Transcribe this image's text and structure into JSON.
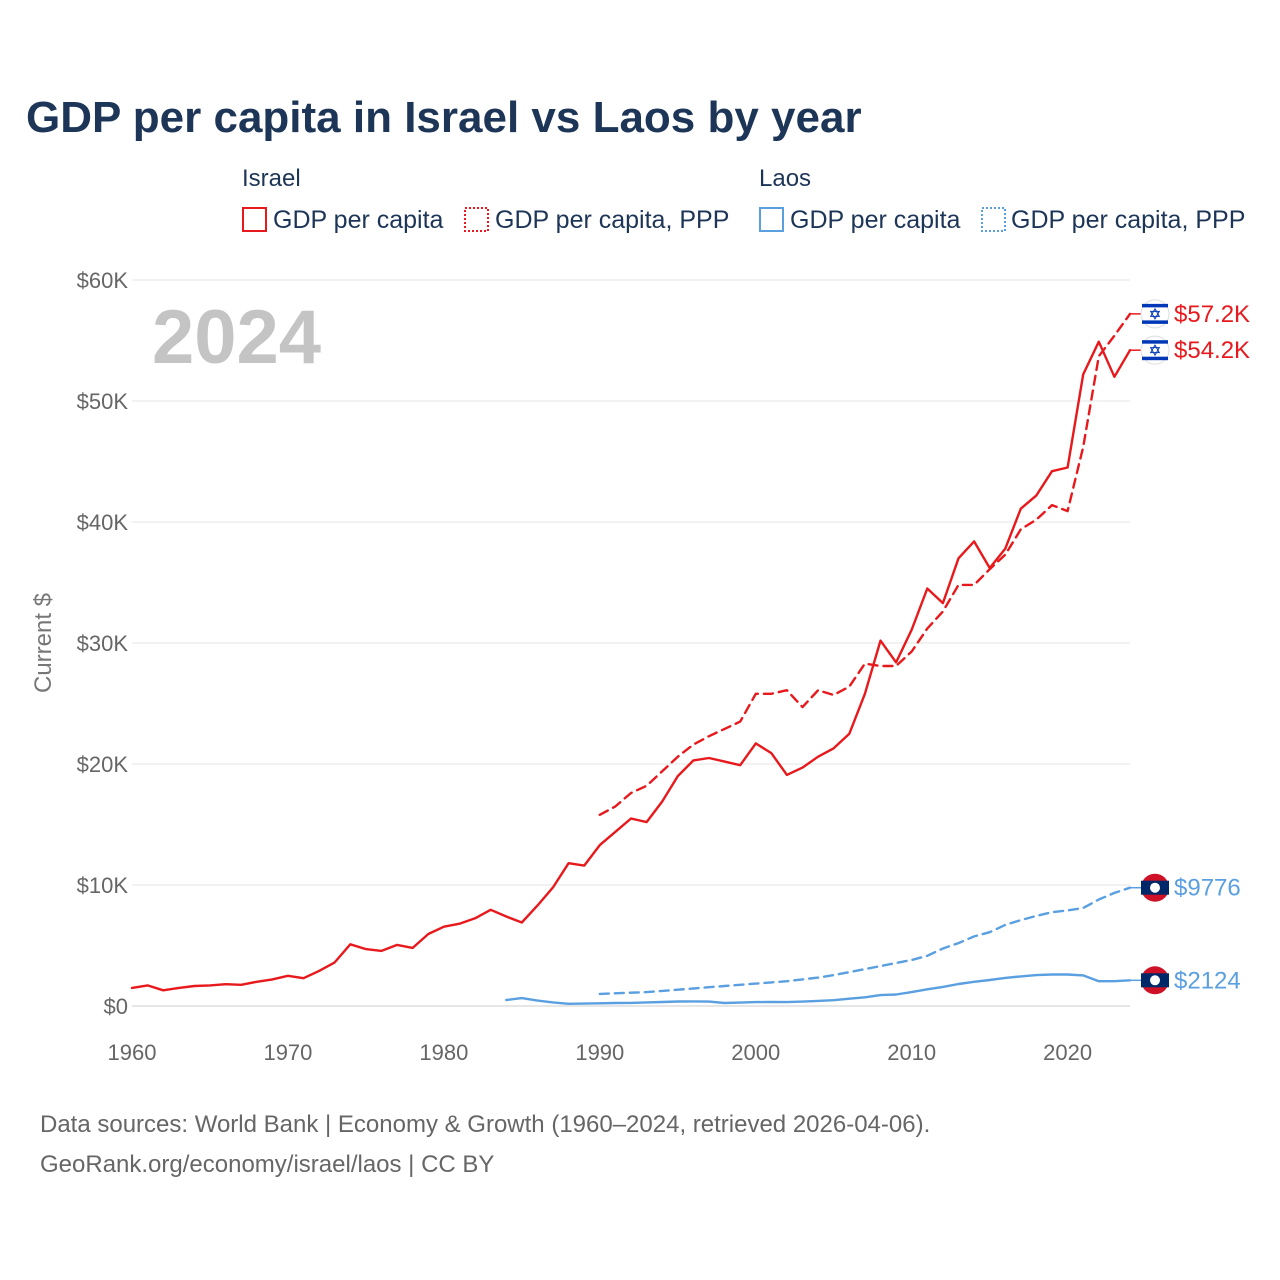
{
  "title": "GDP per capita in Israel vs Laos by year",
  "year_label": "2024",
  "source_line1": "Data sources: World Bank | Economy & Growth (1960–2024, retrieved 2026-04-06).",
  "source_line2": "GeoRank.org/economy/israel/laos | CC BY",
  "colors": {
    "israel": "#e8191c",
    "laos": "#5a9fe0",
    "title": "#1d3557",
    "grid": "#e6e6e6",
    "tick": "#666666"
  },
  "chart_data": {
    "type": "line",
    "title": "GDP per capita in Israel vs Laos by year",
    "ylabel": "Current $",
    "xlabel": "",
    "xlim": [
      1960,
      2024
    ],
    "ylim": [
      0,
      60000
    ],
    "x_ticks": [
      1960,
      1970,
      1980,
      1990,
      2000,
      2010,
      2020
    ],
    "y_ticks": [
      {
        "value": 0,
        "label": "$0"
      },
      {
        "value": 10000,
        "label": "$10K"
      },
      {
        "value": 20000,
        "label": "$20K"
      },
      {
        "value": 30000,
        "label": "$30K"
      },
      {
        "value": 40000,
        "label": "$40K"
      },
      {
        "value": 50000,
        "label": "$50K"
      },
      {
        "value": 60000,
        "label": "$60K"
      }
    ],
    "grid": true,
    "legend_groups": [
      {
        "country": "Israel",
        "color_key": "israel",
        "items": [
          "GDP per capita",
          "GDP per capita, PPP"
        ]
      },
      {
        "country": "Laos",
        "color_key": "laos",
        "items": [
          "GDP per capita",
          "GDP per capita, PPP"
        ]
      }
    ],
    "series": [
      {
        "name": "Israel GDP per capita",
        "country": "Israel",
        "color_key": "israel",
        "dashed": false,
        "end_label": "$54.2K",
        "flag": "israel",
        "x": [
          1960,
          1961,
          1962,
          1963,
          1964,
          1965,
          1966,
          1967,
          1968,
          1969,
          1970,
          1971,
          1972,
          1973,
          1974,
          1975,
          1976,
          1977,
          1978,
          1979,
          1980,
          1981,
          1982,
          1983,
          1984,
          1985,
          1986,
          1987,
          1988,
          1989,
          1990,
          1991,
          1992,
          1993,
          1994,
          1995,
          1996,
          1997,
          1998,
          1999,
          2000,
          2001,
          2002,
          2003,
          2004,
          2005,
          2006,
          2007,
          2008,
          2009,
          2010,
          2011,
          2012,
          2013,
          2014,
          2015,
          2016,
          2017,
          2018,
          2019,
          2020,
          2021,
          2022,
          2023,
          2024
        ],
        "values": [
          1500,
          1700,
          1300,
          1500,
          1650,
          1700,
          1800,
          1750,
          2000,
          2200,
          2500,
          2300,
          2900,
          3600,
          5100,
          4700,
          4550,
          5050,
          4800,
          5950,
          6550,
          6800,
          7250,
          7950,
          7400,
          6900,
          8300,
          9800,
          11800,
          11600,
          13300,
          14400,
          15500,
          15200,
          16900,
          19000,
          20300,
          20500,
          20200,
          19900,
          21700,
          20900,
          19100,
          19700,
          20600,
          21300,
          22500,
          25800,
          30200,
          28400,
          31100,
          34500,
          33300,
          37000,
          38400,
          36200,
          37800,
          41100,
          42200,
          44200,
          44500,
          52200,
          54900,
          52000,
          54200
        ]
      },
      {
        "name": "Israel GDP per capita, PPP",
        "country": "Israel",
        "color_key": "israel",
        "dashed": true,
        "end_label": "$57.2K",
        "flag": "israel",
        "x": [
          1990,
          1991,
          1992,
          1993,
          1994,
          1995,
          1996,
          1997,
          1998,
          1999,
          2000,
          2001,
          2002,
          2003,
          2004,
          2005,
          2006,
          2007,
          2008,
          2009,
          2010,
          2011,
          2012,
          2013,
          2014,
          2015,
          2016,
          2017,
          2018,
          2019,
          2020,
          2021,
          2022,
          2023,
          2024
        ],
        "values": [
          15800,
          16500,
          17600,
          18200,
          19400,
          20600,
          21600,
          22300,
          22900,
          23500,
          25800,
          25800,
          26100,
          24700,
          26100,
          25700,
          26400,
          28300,
          28100,
          28100,
          29300,
          31200,
          32600,
          34800,
          34800,
          36100,
          37300,
          39400,
          40200,
          41400,
          40900,
          46200,
          53700,
          55400,
          57200
        ]
      },
      {
        "name": "Laos GDP per capita",
        "country": "Laos",
        "color_key": "laos",
        "dashed": false,
        "end_label": "$2124",
        "flag": "laos",
        "x": [
          1984,
          1985,
          1986,
          1987,
          1988,
          1989,
          1990,
          1991,
          1992,
          1993,
          1994,
          1995,
          1996,
          1997,
          1998,
          1999,
          2000,
          2001,
          2002,
          2003,
          2004,
          2005,
          2006,
          2007,
          2008,
          2009,
          2010,
          2011,
          2012,
          2013,
          2014,
          2015,
          2016,
          2017,
          2018,
          2019,
          2020,
          2021,
          2022,
          2023,
          2024
        ],
        "values": [
          500,
          650,
          450,
          300,
          180,
          200,
          220,
          250,
          260,
          300,
          330,
          370,
          380,
          360,
          250,
          280,
          320,
          330,
          320,
          360,
          420,
          480,
          600,
          720,
          900,
          950,
          1150,
          1380,
          1580,
          1820,
          2000,
          2150,
          2320,
          2450,
          2550,
          2600,
          2600,
          2530,
          2050,
          2050,
          2124
        ]
      },
      {
        "name": "Laos GDP per capita, PPP",
        "country": "Laos",
        "color_key": "laos",
        "dashed": true,
        "end_label": "$9776",
        "flag": "laos",
        "x": [
          1990,
          1991,
          1992,
          1993,
          1994,
          1995,
          1996,
          1997,
          1998,
          1999,
          2000,
          2001,
          2002,
          2003,
          2004,
          2005,
          2006,
          2007,
          2008,
          2009,
          2010,
          2011,
          2012,
          2013,
          2014,
          2015,
          2016,
          2017,
          2018,
          2019,
          2020,
          2021,
          2022,
          2023,
          2024
        ],
        "values": [
          1000,
          1050,
          1100,
          1150,
          1250,
          1350,
          1450,
          1550,
          1650,
          1750,
          1850,
          1950,
          2050,
          2200,
          2350,
          2550,
          2800,
          3050,
          3300,
          3550,
          3800,
          4150,
          4750,
          5200,
          5750,
          6100,
          6700,
          7100,
          7450,
          7750,
          7900,
          8100,
          8800,
          9350,
          9776
        ]
      }
    ]
  }
}
